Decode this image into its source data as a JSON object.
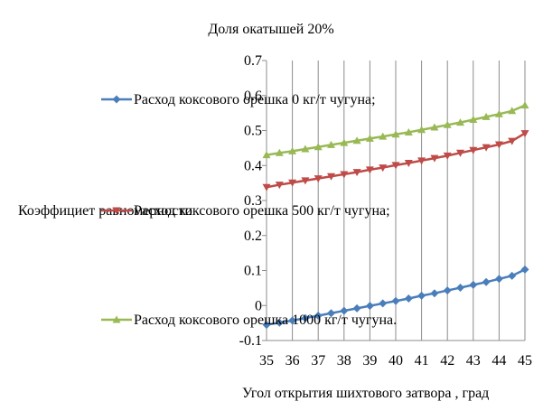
{
  "chart_data": {
    "type": "line",
    "title": "Доля окатышей  20%",
    "xlabel": "Угол открытия шихтового затвора , град",
    "ylabel": "Коэффициет равномерности",
    "x": [
      35,
      35.5,
      36,
      36.5,
      37,
      37.5,
      38,
      38.5,
      39,
      39.5,
      40,
      40.5,
      41,
      41.5,
      42,
      42.5,
      43,
      43.5,
      44,
      44.5,
      45
    ],
    "x_ticks": [
      35,
      36,
      37,
      38,
      39,
      40,
      41,
      42,
      43,
      44,
      45
    ],
    "y_ticks": [
      "-0.1",
      "0",
      "0.1",
      "0.2",
      "0.3",
      "0.4",
      "0.5",
      "0.6",
      "0.7"
    ],
    "xlim": [
      35,
      45
    ],
    "ylim": [
      -0.1,
      0.7
    ],
    "grid": "vertical",
    "series": [
      {
        "name": "Расход коксового орешка 0 кг/т чугуна;",
        "color": "#4a7ebb",
        "marker": "diamond",
        "values": [
          -0.055,
          -0.049,
          -0.043,
          -0.036,
          -0.029,
          -0.022,
          -0.015,
          -0.008,
          -0.001,
          0.006,
          0.013,
          0.02,
          0.028,
          0.035,
          0.043,
          0.051,
          0.059,
          0.067,
          0.076,
          0.085,
          0.103
        ]
      },
      {
        "name": "Расход коксового орешка 500 кг/т чугуна;",
        "color": "#be4b48",
        "marker": "triangle-down",
        "values": [
          0.338,
          0.345,
          0.351,
          0.357,
          0.363,
          0.369,
          0.375,
          0.381,
          0.388,
          0.394,
          0.401,
          0.407,
          0.414,
          0.421,
          0.428,
          0.436,
          0.444,
          0.452,
          0.46,
          0.47,
          0.492
        ]
      },
      {
        "name": "Расход коксового орешка 1000 кг/т чугуна.",
        "color": "#98b954",
        "marker": "triangle-up",
        "values": [
          0.43,
          0.436,
          0.441,
          0.447,
          0.453,
          0.459,
          0.465,
          0.471,
          0.477,
          0.483,
          0.489,
          0.495,
          0.502,
          0.509,
          0.516,
          0.523,
          0.531,
          0.539,
          0.547,
          0.556,
          0.572
        ]
      }
    ]
  }
}
